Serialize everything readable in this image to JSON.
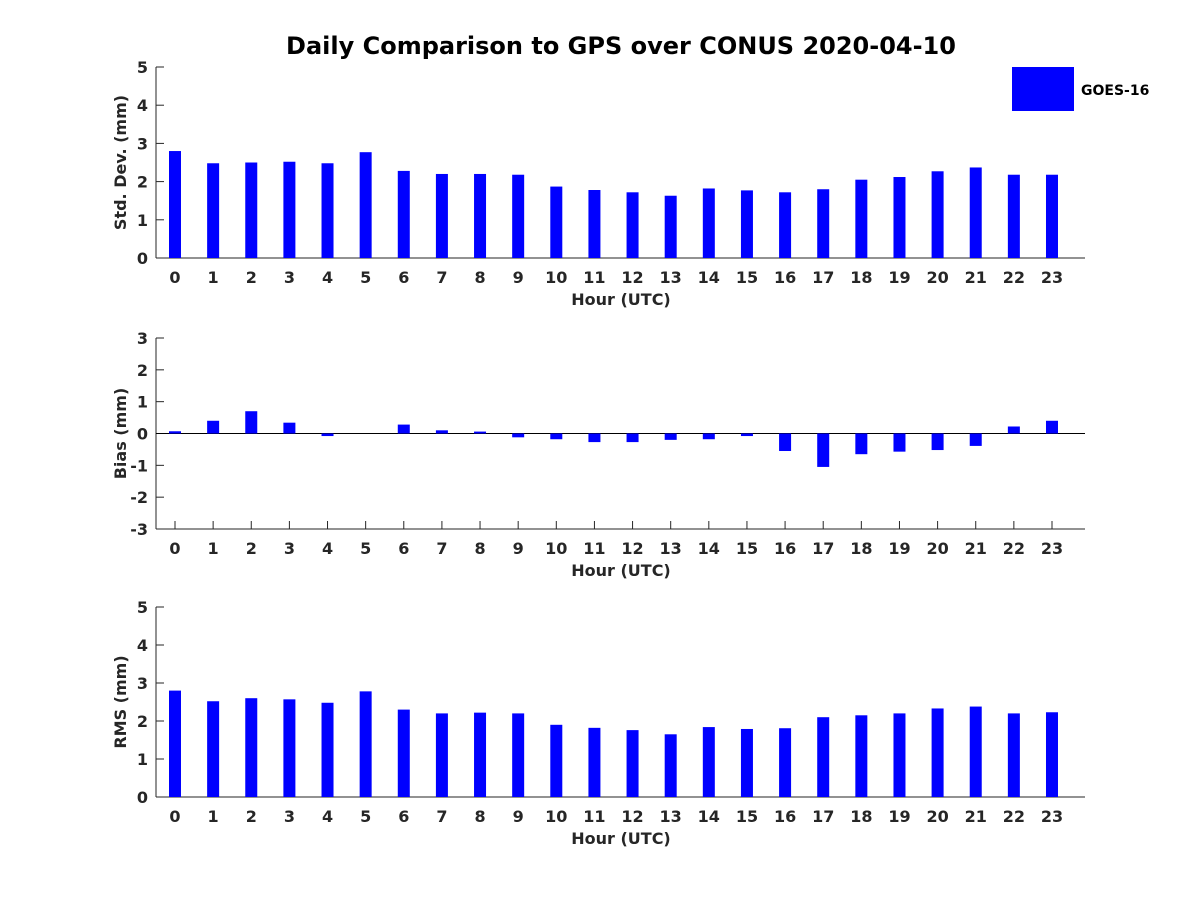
{
  "chart_data": [
    {
      "type": "bar",
      "title": "Daily Comparison to GPS over CONUS 2020-04-10",
      "xlabel": "Hour (UTC)",
      "ylabel": "Std. Dev. (mm)",
      "ylim": [
        0,
        5
      ],
      "yticks": [
        0,
        1,
        2,
        3,
        4,
        5
      ],
      "categories": [
        "0",
        "1",
        "2",
        "3",
        "4",
        "5",
        "6",
        "7",
        "8",
        "9",
        "10",
        "11",
        "12",
        "13",
        "14",
        "15",
        "16",
        "17",
        "18",
        "19",
        "20",
        "21",
        "22",
        "23"
      ],
      "series": [
        {
          "name": "GOES-16",
          "color": "#0000ff",
          "values": [
            2.8,
            2.48,
            2.5,
            2.52,
            2.48,
            2.77,
            2.28,
            2.2,
            2.2,
            2.18,
            1.87,
            1.78,
            1.72,
            1.63,
            1.82,
            1.77,
            1.72,
            1.8,
            2.05,
            2.12,
            2.27,
            2.37,
            2.18,
            2.18
          ]
        }
      ],
      "legend": {
        "position": "top-right",
        "entries": [
          "GOES-16"
        ]
      }
    },
    {
      "type": "bar",
      "xlabel": "Hour (UTC)",
      "ylabel": "Bias (mm)",
      "ylim": [
        -3,
        3
      ],
      "yticks": [
        -3,
        -2,
        -1,
        0,
        1,
        2,
        3
      ],
      "zero_line": true,
      "categories": [
        "0",
        "1",
        "2",
        "3",
        "4",
        "5",
        "6",
        "7",
        "8",
        "9",
        "10",
        "11",
        "12",
        "13",
        "14",
        "15",
        "16",
        "17",
        "18",
        "19",
        "20",
        "21",
        "22",
        "23"
      ],
      "series": [
        {
          "name": "GOES-16",
          "color": "#0000ff",
          "values": [
            0.07,
            0.4,
            0.7,
            0.34,
            -0.08,
            0.0,
            0.28,
            0.1,
            0.06,
            -0.12,
            -0.18,
            -0.27,
            -0.27,
            -0.2,
            -0.18,
            -0.08,
            -0.55,
            -1.05,
            -0.65,
            -0.57,
            -0.52,
            -0.39,
            0.22,
            0.4
          ]
        }
      ]
    },
    {
      "type": "bar",
      "xlabel": "Hour (UTC)",
      "ylabel": "RMS (mm)",
      "ylim": [
        0,
        5
      ],
      "yticks": [
        0,
        1,
        2,
        3,
        4,
        5
      ],
      "categories": [
        "0",
        "1",
        "2",
        "3",
        "4",
        "5",
        "6",
        "7",
        "8",
        "9",
        "10",
        "11",
        "12",
        "13",
        "14",
        "15",
        "16",
        "17",
        "18",
        "19",
        "20",
        "21",
        "22",
        "23"
      ],
      "series": [
        {
          "name": "GOES-16",
          "color": "#0000ff",
          "values": [
            2.8,
            2.52,
            2.6,
            2.57,
            2.48,
            2.78,
            2.3,
            2.2,
            2.22,
            2.2,
            1.9,
            1.82,
            1.76,
            1.65,
            1.84,
            1.79,
            1.81,
            2.1,
            2.15,
            2.2,
            2.33,
            2.38,
            2.2,
            2.23
          ]
        }
      ]
    }
  ]
}
